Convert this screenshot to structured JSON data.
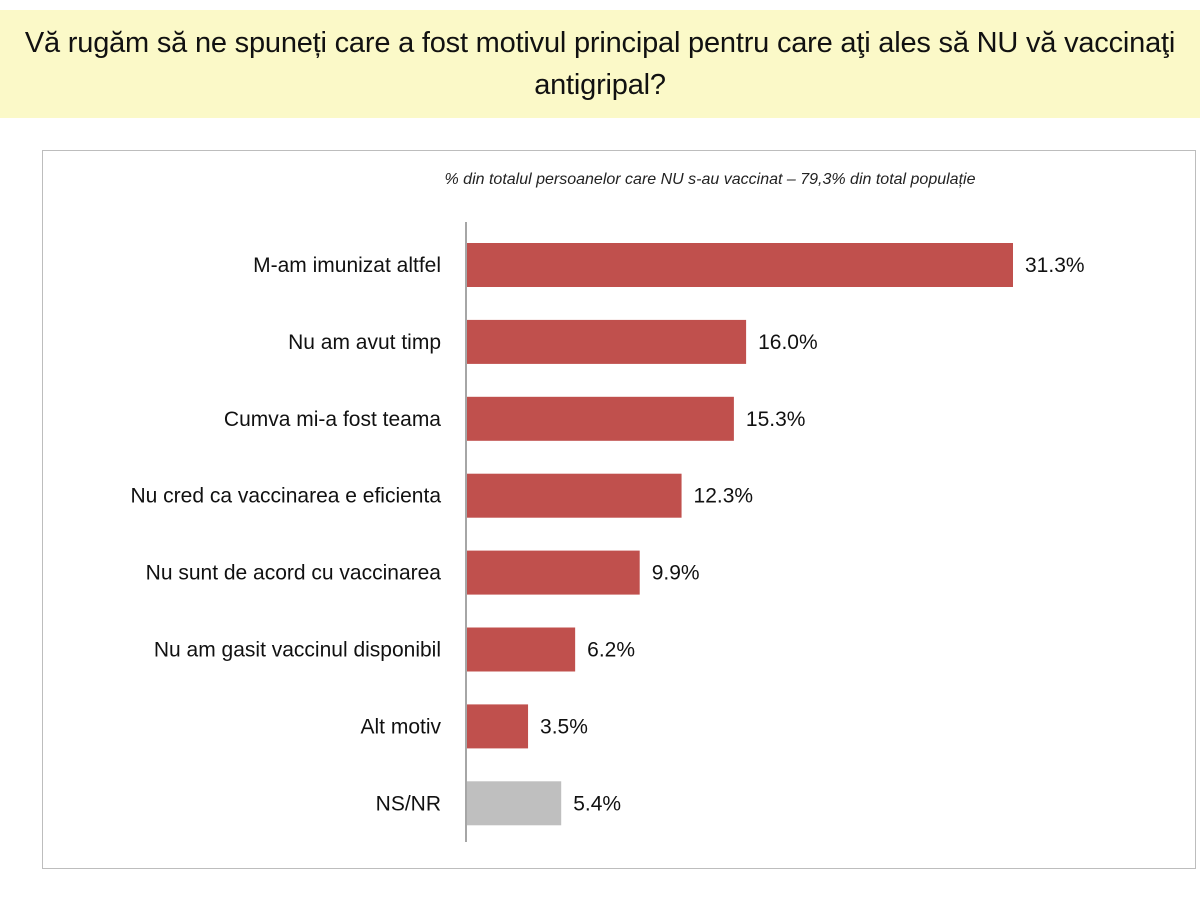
{
  "header": {
    "title": "Vă rugăm să ne spuneți care a fost motivul principal pentru care aţi ales să NU vă vaccinaţi antigripal?"
  },
  "chart_data": {
    "type": "bar",
    "orientation": "horizontal",
    "title": "Vă rugăm să ne spuneți care a fost motivul principal pentru care aţi ales să NU vă vaccinaţi antigripal?",
    "subtitle": "% din totalul persoanelor care NU s-au vaccinat – 79,3% din total populație",
    "xlabel": "",
    "ylabel": "",
    "xlim": [
      0,
      31.3
    ],
    "grid": false,
    "legend": "none",
    "categories": [
      "M-am imunizat altfel",
      "Nu am avut timp",
      "Cumva mi-a fost teama",
      "Nu cred ca vaccinarea e eficienta",
      "Nu sunt de acord cu vaccinarea",
      "Nu am gasit vaccinul disponibil",
      "Alt motiv",
      "NS/NR"
    ],
    "values": [
      31.3,
      16.0,
      15.3,
      12.3,
      9.9,
      6.2,
      3.5,
      5.4
    ],
    "labels": [
      "31.3%",
      "16.0%",
      "15.3%",
      "12.3%",
      "9.9%",
      "6.2%",
      "3.5%",
      "5.4%"
    ],
    "colors": [
      "#c0504d",
      "#c0504d",
      "#c0504d",
      "#c0504d",
      "#c0504d",
      "#c0504d",
      "#c0504d",
      "#bfbfbf"
    ]
  },
  "colors": {
    "header_bg": "#fbf9c8",
    "bar": "#c0504d",
    "bar_nsnr": "#bfbfbf",
    "axis": "#a6a6a6",
    "frame": "#bdbdbd"
  }
}
